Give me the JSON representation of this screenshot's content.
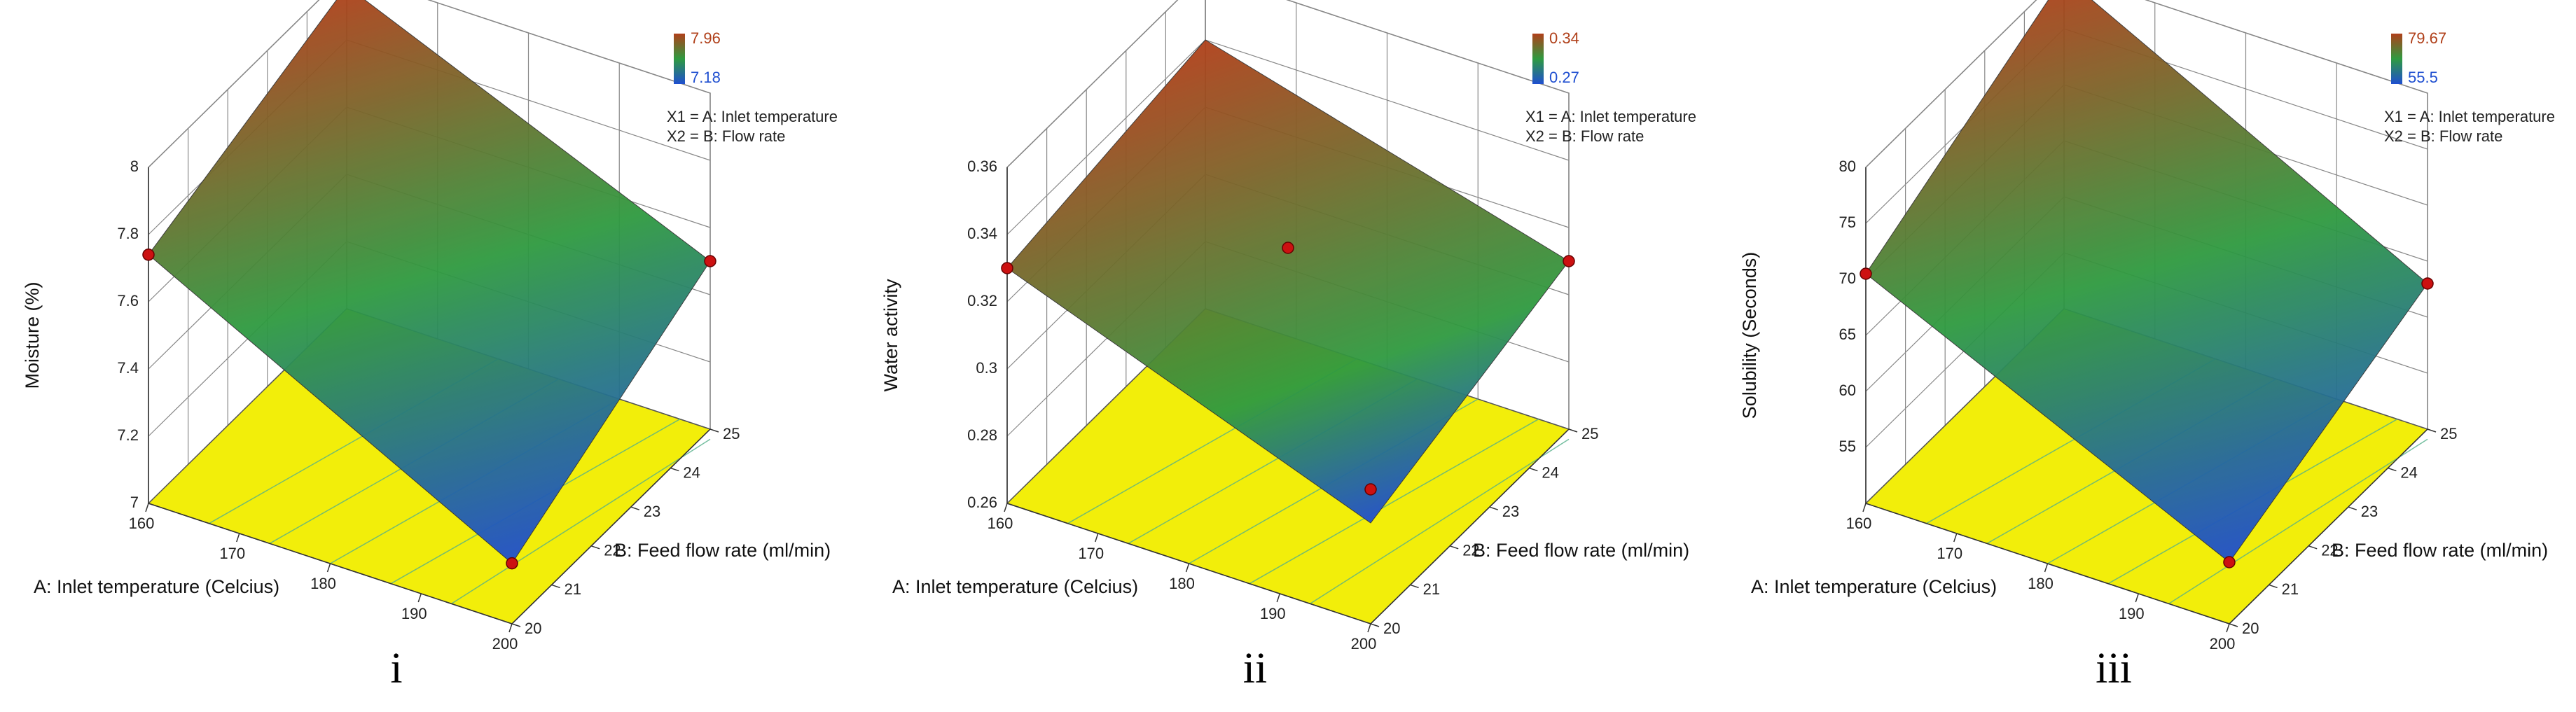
{
  "chart_data": [
    {
      "type": "surface",
      "caption": "i",
      "z_label": "Moisture (%)",
      "x_label": "A: Inlet temperature (Celcius)",
      "y_label": "B: Feed flow rate (ml/min)",
      "factors": [
        "X1 = A: Inlet temperature",
        "X2 = B: Flow rate"
      ],
      "colorbar_range": [
        7.18,
        7.96
      ],
      "colormap": [
        "#1f4fd0",
        "#2f9a40",
        "#b0401a"
      ],
      "x": [
        160,
        200
      ],
      "y": [
        20,
        25
      ],
      "z": [
        [
          7.74,
          7.96
        ],
        [
          7.18,
          7.5
        ]
      ],
      "points": {
        "x": [
          160,
          200,
          200
        ],
        "y": [
          20,
          20,
          25
        ],
        "z": [
          7.74,
          7.18,
          7.5
        ],
        "color": "#cc1111"
      },
      "xlim": [
        160,
        200
      ],
      "xticks": [
        160,
        170,
        180,
        190,
        200
      ],
      "ylim": [
        20,
        25
      ],
      "yticks": [
        20,
        21,
        22,
        23,
        24,
        25
      ],
      "zlim": [
        7,
        8
      ],
      "zticks": [
        7,
        7.2,
        7.4,
        7.6,
        7.8,
        8
      ],
      "floor_color": "#f2ee0a"
    },
    {
      "type": "surface",
      "caption": "ii",
      "z_label": "Water activity",
      "x_label": "A: Inlet temperature (Celcius)",
      "y_label": "B: Feed flow rate (ml/min)",
      "factors": [
        "X1 = A: Inlet temperature",
        "X2 = B: Flow rate"
      ],
      "colorbar_range": [
        0.27,
        0.34
      ],
      "colormap": [
        "#1f4fd0",
        "#2f9a40",
        "#b0401a"
      ],
      "x": [
        160,
        200
      ],
      "y": [
        20,
        25
      ],
      "z": [
        [
          0.33,
          0.34
        ],
        [
          0.29,
          0.31
        ]
      ],
      "points": {
        "x": [
          160,
          180,
          200,
          200
        ],
        "y": [
          20,
          22.5,
          20,
          25
        ],
        "z": [
          0.33,
          0.325,
          0.3,
          0.31
        ],
        "color": "#cc1111"
      },
      "xlim": [
        160,
        200
      ],
      "xticks": [
        160,
        170,
        180,
        190,
        200
      ],
      "ylim": [
        20,
        25
      ],
      "yticks": [
        20,
        21,
        22,
        23,
        24,
        25
      ],
      "zlim": [
        0.26,
        0.36
      ],
      "zticks": [
        0.26,
        0.28,
        0.3,
        0.32,
        0.34,
        0.36
      ],
      "floor_color": "#f2ee0a"
    },
    {
      "type": "surface",
      "caption": "iii",
      "z_label": "Solubility (Seconds)",
      "x_label": "A: Inlet temperature (Celcius)",
      "y_label": "B: Feed flow rate (ml/min)",
      "factors": [
        "X1 = A: Inlet temperature",
        "X2 = B: Flow rate"
      ],
      "colorbar_range": [
        55.5,
        79.67
      ],
      "colormap": [
        "#1f4fd0",
        "#2f9a40",
        "#b0401a"
      ],
      "x": [
        160,
        200
      ],
      "y": [
        20,
        25
      ],
      "z": [
        [
          70.5,
          79.67
        ],
        [
          55.5,
          63
        ]
      ],
      "points": {
        "x": [
          160,
          200,
          200
        ],
        "y": [
          20,
          20,
          25
        ],
        "z": [
          70.5,
          55.5,
          63
        ],
        "color": "#cc1111"
      },
      "xlim": [
        160,
        200
      ],
      "xticks": [
        160,
        170,
        180,
        190,
        200
      ],
      "ylim": [
        20,
        25
      ],
      "yticks": [
        20,
        21,
        22,
        23,
        24,
        25
      ],
      "zlim": [
        50,
        80
      ],
      "zticks": [
        55,
        60,
        65,
        70,
        75,
        80
      ],
      "floor_color": "#f2ee0a"
    }
  ]
}
